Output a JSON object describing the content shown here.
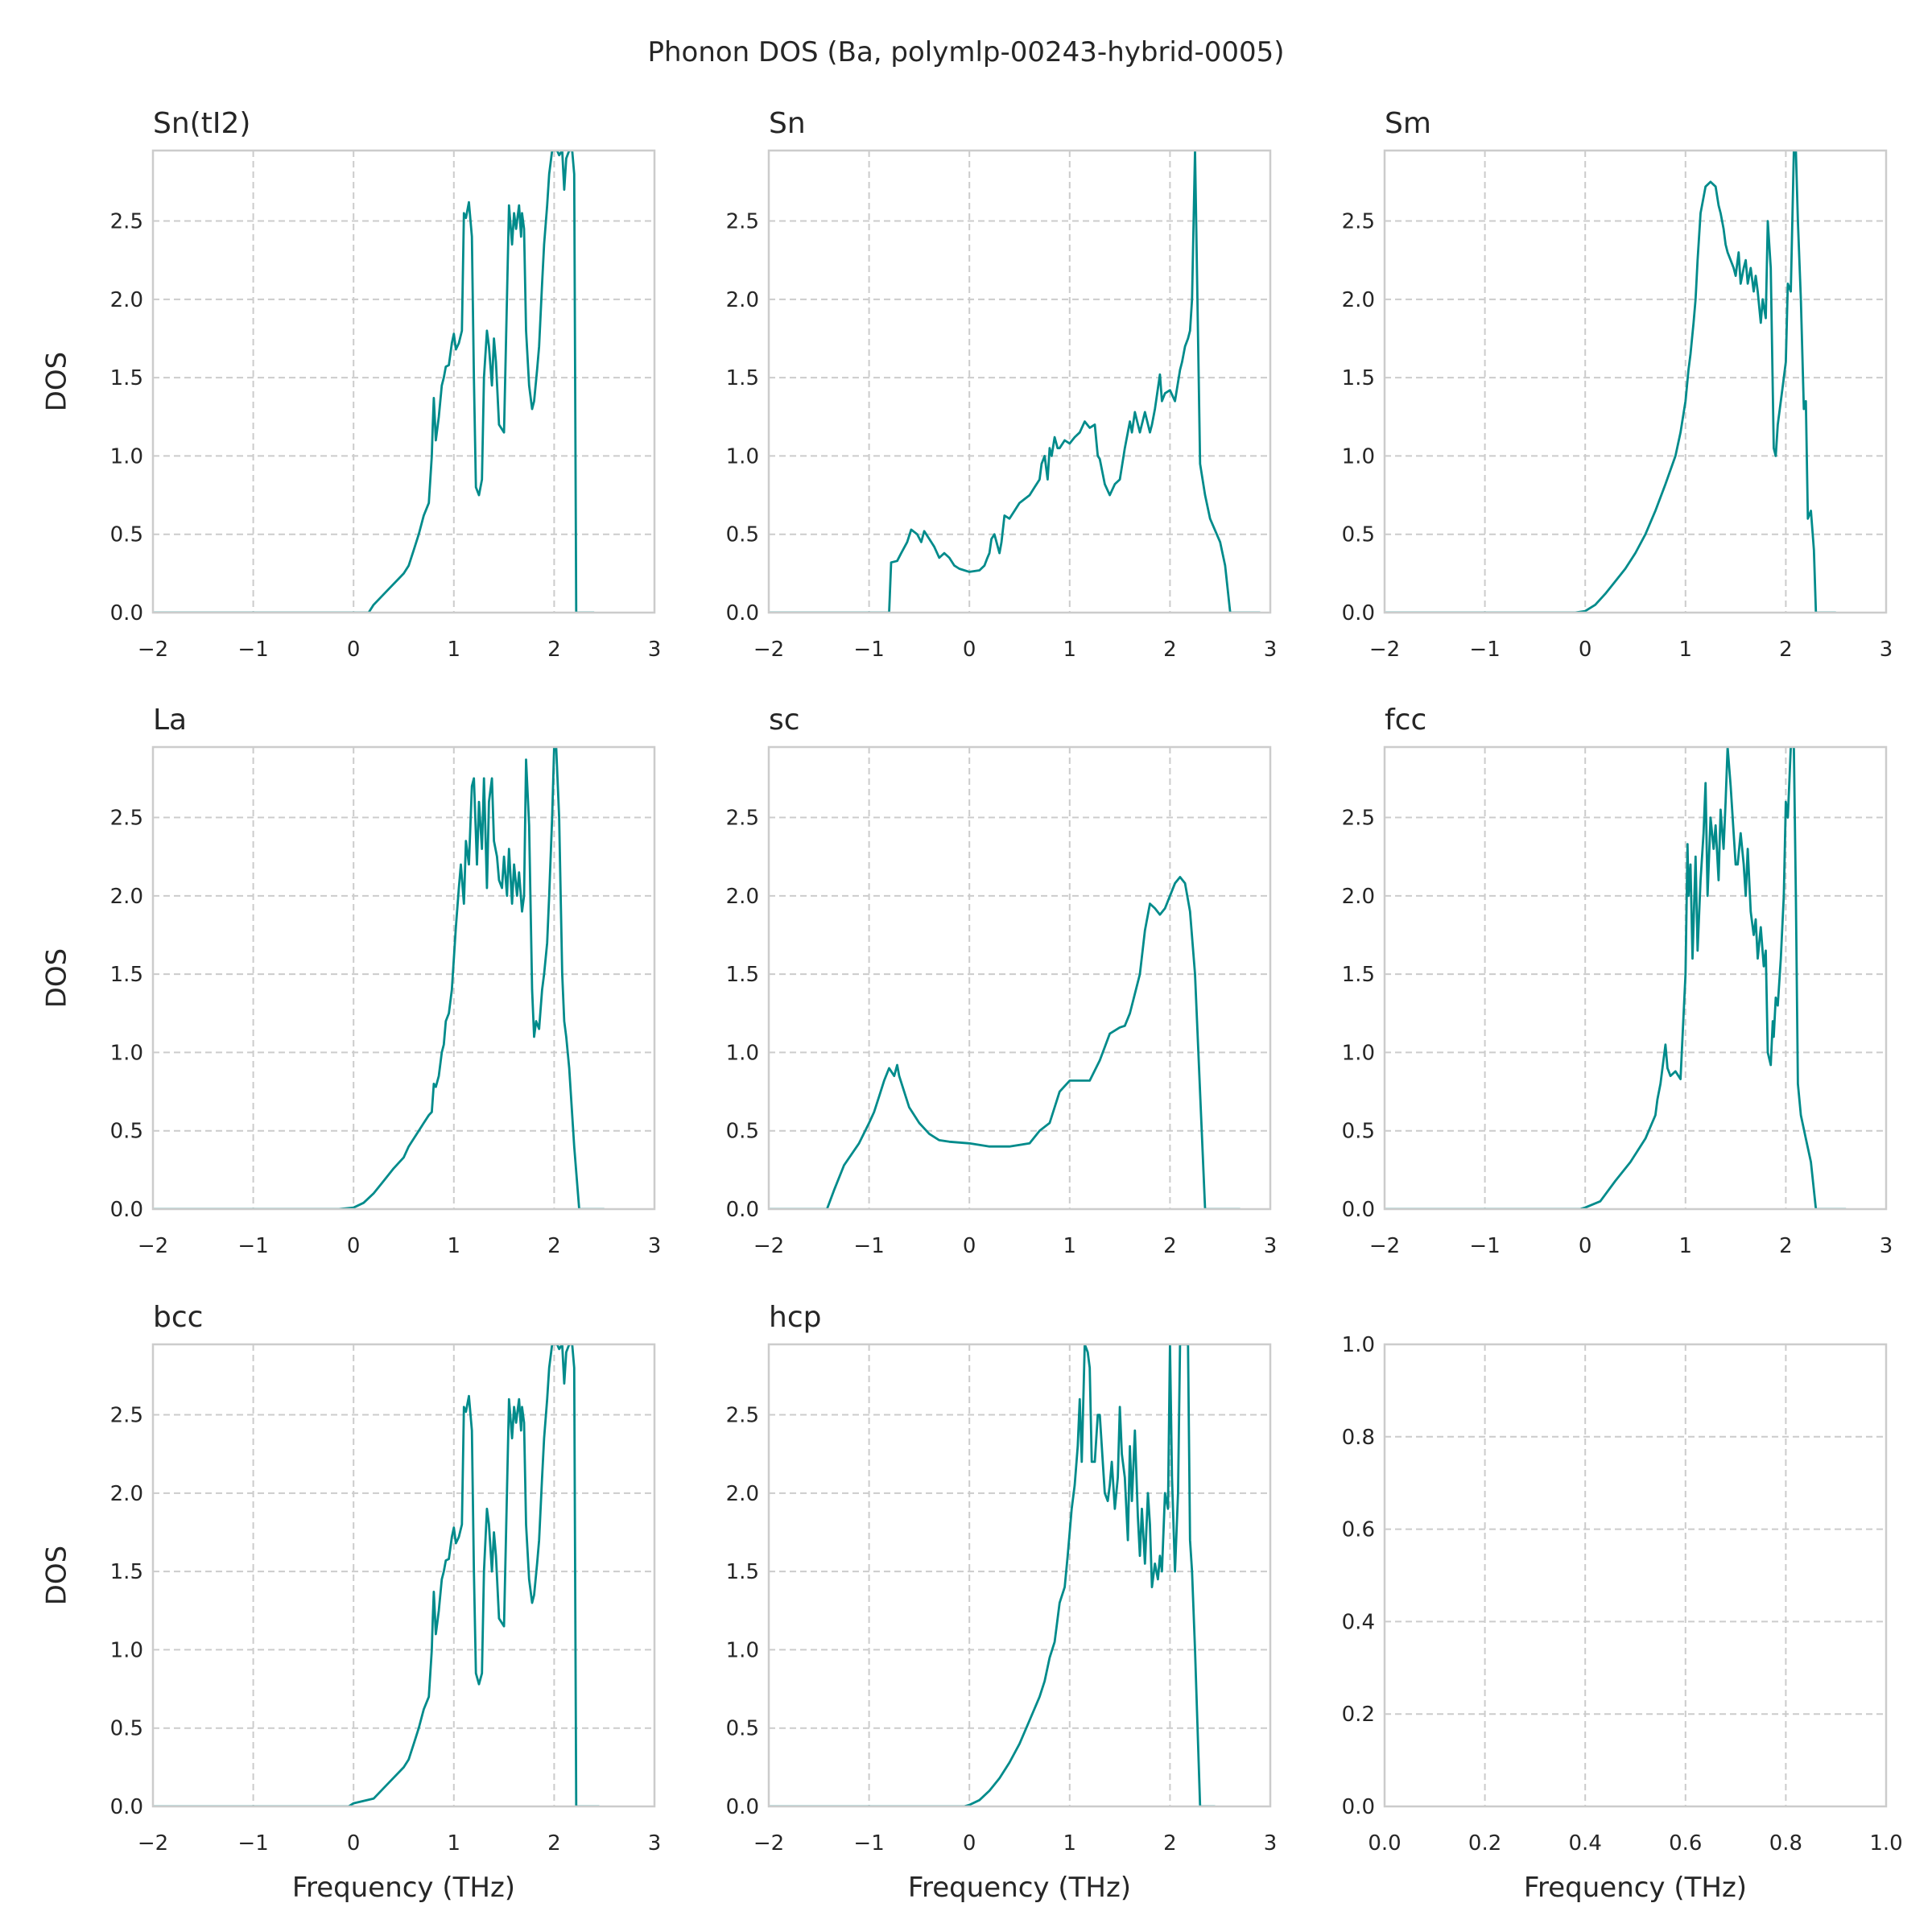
{
  "figure": {
    "title": "Phonon DOS (Ba, polymlp-00243-hybrid-0005)",
    "series_color": "#008b8b",
    "grid_color": "#cccccc"
  },
  "chart_data": [
    {
      "type": "line",
      "title": "Sn(tI2)",
      "xlabel": "",
      "ylabel": "DOS",
      "xlim": [
        -2,
        3
      ],
      "ylim": [
        0,
        2.95
      ],
      "xticks": [
        "−2",
        "−1",
        "0",
        "1",
        "2",
        "3"
      ],
      "yticks": [
        "0.0",
        "0.5",
        "1.0",
        "1.5",
        "2.0",
        "2.5"
      ],
      "grid": true,
      "x": [
        -2.0,
        0.15,
        0.2,
        0.35,
        0.5,
        0.55,
        0.6,
        0.65,
        0.7,
        0.75,
        0.78,
        0.79,
        0.8,
        0.82,
        0.85,
        0.88,
        0.9,
        0.92,
        0.95,
        0.98,
        1.0,
        1.02,
        1.05,
        1.08,
        1.1,
        1.12,
        1.15,
        1.18,
        1.2,
        1.22,
        1.25,
        1.28,
        1.3,
        1.33,
        1.35,
        1.38,
        1.4,
        1.42,
        1.45,
        1.5,
        1.55,
        1.58,
        1.6,
        1.62,
        1.65,
        1.67,
        1.68,
        1.7,
        1.72,
        1.75,
        1.78,
        1.8,
        1.83,
        1.85,
        1.88,
        1.9,
        1.93,
        1.95,
        1.98,
        2.0,
        2.03,
        2.05,
        2.08,
        2.1,
        2.12,
        2.15,
        2.18,
        2.2,
        2.22,
        2.25,
        2.4
      ],
      "y": [
        0.0,
        0.0,
        0.05,
        0.15,
        0.25,
        0.3,
        0.4,
        0.5,
        0.62,
        0.7,
        1.0,
        1.2,
        1.37,
        1.1,
        1.25,
        1.45,
        1.5,
        1.57,
        1.58,
        1.72,
        1.78,
        1.68,
        1.72,
        1.8,
        2.55,
        2.52,
        2.62,
        2.4,
        1.5,
        0.8,
        0.75,
        0.85,
        1.5,
        1.8,
        1.7,
        1.45,
        1.75,
        1.6,
        1.2,
        1.15,
        2.6,
        2.35,
        2.55,
        2.45,
        2.6,
        2.4,
        2.55,
        2.45,
        1.8,
        1.45,
        1.3,
        1.35,
        1.55,
        1.7,
        2.1,
        2.35,
        2.6,
        2.8,
        2.95,
        2.95,
        2.95,
        2.92,
        2.95,
        2.7,
        2.9,
        2.95,
        2.95,
        2.8,
        0.0,
        0.0,
        0.0
      ]
    },
    {
      "type": "line",
      "title": "Sn",
      "xlabel": "",
      "ylabel": "",
      "xlim": [
        -2,
        3
      ],
      "ylim": [
        0,
        2.95
      ],
      "xticks": [
        "−2",
        "−1",
        "0",
        "1",
        "2",
        "3"
      ],
      "yticks": [
        "0.0",
        "0.5",
        "1.0",
        "1.5",
        "2.0",
        "2.5"
      ],
      "grid": true,
      "x": [
        -2.0,
        -1.1,
        -0.8,
        -0.78,
        -0.72,
        -0.68,
        -0.62,
        -0.58,
        -0.52,
        -0.48,
        -0.45,
        -0.4,
        -0.35,
        -0.3,
        -0.25,
        -0.2,
        -0.15,
        -0.1,
        0.0,
        0.1,
        0.15,
        0.18,
        0.2,
        0.22,
        0.25,
        0.3,
        0.32,
        0.35,
        0.4,
        0.45,
        0.5,
        0.6,
        0.65,
        0.7,
        0.72,
        0.75,
        0.78,
        0.8,
        0.82,
        0.85,
        0.88,
        0.9,
        0.95,
        1.0,
        1.05,
        1.1,
        1.15,
        1.2,
        1.25,
        1.28,
        1.3,
        1.35,
        1.4,
        1.45,
        1.5,
        1.55,
        1.6,
        1.62,
        1.65,
        1.7,
        1.75,
        1.8,
        1.82,
        1.85,
        1.9,
        1.92,
        1.95,
        2.0,
        2.05,
        2.1,
        2.12,
        2.15,
        2.18,
        2.2,
        2.22,
        2.25,
        2.3,
        2.35,
        2.4,
        2.5,
        2.55,
        2.6,
        2.9
      ],
      "y": [
        0.0,
        0.0,
        0.0,
        0.32,
        0.33,
        0.38,
        0.45,
        0.53,
        0.5,
        0.45,
        0.52,
        0.47,
        0.42,
        0.35,
        0.38,
        0.35,
        0.3,
        0.28,
        0.26,
        0.27,
        0.3,
        0.35,
        0.38,
        0.47,
        0.5,
        0.38,
        0.45,
        0.62,
        0.6,
        0.65,
        0.7,
        0.75,
        0.8,
        0.85,
        0.95,
        1.0,
        0.85,
        1.05,
        1.0,
        1.12,
        1.05,
        1.05,
        1.1,
        1.08,
        1.12,
        1.15,
        1.22,
        1.18,
        1.2,
        1.0,
        0.98,
        0.82,
        0.75,
        0.82,
        0.85,
        1.05,
        1.22,
        1.15,
        1.28,
        1.15,
        1.28,
        1.15,
        1.2,
        1.3,
        1.52,
        1.35,
        1.4,
        1.42,
        1.35,
        1.55,
        1.6,
        1.7,
        1.75,
        1.8,
        2.0,
        2.95,
        0.95,
        0.75,
        0.6,
        0.45,
        0.3,
        0.0,
        0.0
      ]
    },
    {
      "type": "line",
      "title": "Sm",
      "xlabel": "",
      "ylabel": "",
      "xlim": [
        -2,
        3
      ],
      "ylim": [
        0,
        2.95
      ],
      "xticks": [
        "−2",
        "−1",
        "0",
        "1",
        "2",
        "3"
      ],
      "yticks": [
        "0.0",
        "0.5",
        "1.0",
        "1.5",
        "2.0",
        "2.5"
      ],
      "grid": true,
      "x": [
        -2.0,
        -0.1,
        0.0,
        0.1,
        0.2,
        0.3,
        0.4,
        0.5,
        0.6,
        0.7,
        0.8,
        0.9,
        0.95,
        1.0,
        1.03,
        1.05,
        1.08,
        1.1,
        1.12,
        1.15,
        1.2,
        1.25,
        1.3,
        1.33,
        1.35,
        1.38,
        1.4,
        1.42,
        1.45,
        1.48,
        1.5,
        1.53,
        1.55,
        1.58,
        1.6,
        1.62,
        1.65,
        1.68,
        1.7,
        1.72,
        1.75,
        1.77,
        1.8,
        1.82,
        1.85,
        1.88,
        1.9,
        1.92,
        1.95,
        1.97,
        2.0,
        2.02,
        2.05,
        2.08,
        2.1,
        2.12,
        2.15,
        2.18,
        2.2,
        2.22,
        2.25,
        2.28,
        2.3,
        2.5
      ],
      "y": [
        0.0,
        0.0,
        0.01,
        0.05,
        0.12,
        0.2,
        0.28,
        0.38,
        0.5,
        0.65,
        0.82,
        1.0,
        1.15,
        1.35,
        1.55,
        1.65,
        1.85,
        2.0,
        2.25,
        2.55,
        2.72,
        2.75,
        2.72,
        2.6,
        2.55,
        2.45,
        2.35,
        2.3,
        2.25,
        2.2,
        2.15,
        2.3,
        2.1,
        2.2,
        2.25,
        2.1,
        2.2,
        2.05,
        2.15,
        2.05,
        1.85,
        2.0,
        1.88,
        2.5,
        2.2,
        1.05,
        1.0,
        1.2,
        1.35,
        1.45,
        1.6,
        2.1,
        2.05,
        2.95,
        2.95,
        2.5,
        2.0,
        1.3,
        1.35,
        0.6,
        0.65,
        0.4,
        0.0,
        0.0
      ]
    },
    {
      "type": "line",
      "title": "La",
      "xlabel": "",
      "ylabel": "DOS",
      "xlim": [
        -2,
        3
      ],
      "ylim": [
        0,
        2.95
      ],
      "xticks": [
        "−2",
        "−1",
        "0",
        "1",
        "2",
        "3"
      ],
      "yticks": [
        "0.0",
        "0.5",
        "1.0",
        "1.5",
        "2.0",
        "2.5"
      ],
      "grid": true,
      "x": [
        -2.0,
        -0.15,
        0.0,
        0.1,
        0.2,
        0.3,
        0.4,
        0.5,
        0.55,
        0.6,
        0.65,
        0.7,
        0.75,
        0.78,
        0.8,
        0.82,
        0.85,
        0.88,
        0.9,
        0.92,
        0.95,
        0.98,
        1.0,
        1.02,
        1.05,
        1.07,
        1.1,
        1.12,
        1.15,
        1.18,
        1.2,
        1.23,
        1.25,
        1.28,
        1.3,
        1.33,
        1.35,
        1.38,
        1.4,
        1.43,
        1.45,
        1.48,
        1.5,
        1.53,
        1.55,
        1.58,
        1.6,
        1.63,
        1.65,
        1.68,
        1.7,
        1.72,
        1.75,
        1.78,
        1.8,
        1.82,
        1.85,
        1.88,
        1.9,
        1.93,
        1.95,
        1.98,
        2.0,
        2.02,
        2.05,
        2.08,
        2.1,
        2.12,
        2.15,
        2.2,
        2.25,
        2.3,
        2.5
      ],
      "y": [
        0.0,
        0.0,
        0.01,
        0.04,
        0.1,
        0.18,
        0.26,
        0.33,
        0.4,
        0.45,
        0.5,
        0.55,
        0.6,
        0.62,
        0.8,
        0.78,
        0.85,
        1.0,
        1.05,
        1.2,
        1.25,
        1.4,
        1.6,
        1.8,
        2.05,
        2.2,
        1.95,
        2.35,
        2.2,
        2.7,
        2.75,
        2.2,
        2.6,
        2.3,
        2.75,
        2.05,
        2.6,
        2.75,
        2.35,
        2.25,
        2.1,
        2.05,
        2.25,
        2.0,
        2.3,
        1.95,
        2.2,
        2.0,
        2.15,
        1.9,
        2.0,
        2.87,
        2.45,
        1.4,
        1.1,
        1.2,
        1.15,
        1.4,
        1.5,
        1.7,
        2.0,
        2.5,
        2.95,
        2.95,
        2.5,
        1.5,
        1.2,
        1.1,
        0.9,
        0.4,
        0.0,
        0.0,
        0.0
      ]
    },
    {
      "type": "line",
      "title": "sc",
      "xlabel": "",
      "ylabel": "",
      "xlim": [
        -2,
        3
      ],
      "ylim": [
        0,
        2.95
      ],
      "xticks": [
        "−2",
        "−1",
        "0",
        "1",
        "2",
        "3"
      ],
      "yticks": [
        "0.0",
        "0.5",
        "1.0",
        "1.5",
        "2.0",
        "2.5"
      ],
      "grid": true,
      "x": [
        -2.0,
        -1.8,
        -1.42,
        -1.35,
        -1.25,
        -1.1,
        -1.0,
        -0.95,
        -0.9,
        -0.85,
        -0.8,
        -0.75,
        -0.72,
        -0.7,
        -0.65,
        -0.6,
        -0.5,
        -0.4,
        -0.3,
        -0.2,
        0.0,
        0.2,
        0.4,
        0.6,
        0.7,
        0.8,
        0.9,
        1.0,
        1.1,
        1.2,
        1.3,
        1.4,
        1.5,
        1.55,
        1.6,
        1.7,
        1.75,
        1.8,
        1.85,
        1.9,
        1.95,
        2.0,
        2.05,
        2.1,
        2.15,
        2.2,
        2.25,
        2.35,
        2.7
      ],
      "y": [
        0.0,
        0.0,
        0.0,
        0.12,
        0.28,
        0.42,
        0.55,
        0.62,
        0.72,
        0.82,
        0.9,
        0.85,
        0.92,
        0.85,
        0.75,
        0.65,
        0.55,
        0.48,
        0.44,
        0.43,
        0.42,
        0.4,
        0.4,
        0.42,
        0.5,
        0.55,
        0.75,
        0.82,
        0.82,
        0.82,
        0.95,
        1.12,
        1.16,
        1.17,
        1.25,
        1.5,
        1.78,
        1.95,
        1.92,
        1.88,
        1.92,
        2.0,
        2.08,
        2.12,
        2.08,
        1.9,
        1.5,
        0.0,
        0.0
      ]
    },
    {
      "type": "line",
      "title": "fcc",
      "xlabel": "",
      "ylabel": "",
      "xlim": [
        -2,
        3
      ],
      "ylim": [
        0,
        2.95
      ],
      "xticks": [
        "−2",
        "−1",
        "0",
        "1",
        "2",
        "3"
      ],
      "yticks": [
        "0.0",
        "0.5",
        "1.0",
        "1.5",
        "2.0",
        "2.5"
      ],
      "grid": true,
      "x": [
        -2.0,
        -0.05,
        0.0,
        0.15,
        0.3,
        0.45,
        0.6,
        0.7,
        0.72,
        0.75,
        0.78,
        0.8,
        0.82,
        0.85,
        0.9,
        0.95,
        1.0,
        1.02,
        1.03,
        1.05,
        1.07,
        1.1,
        1.12,
        1.15,
        1.18,
        1.2,
        1.22,
        1.25,
        1.28,
        1.3,
        1.33,
        1.35,
        1.38,
        1.4,
        1.42,
        1.45,
        1.48,
        1.5,
        1.52,
        1.55,
        1.58,
        1.6,
        1.62,
        1.65,
        1.68,
        1.7,
        1.72,
        1.75,
        1.78,
        1.8,
        1.82,
        1.85,
        1.87,
        1.88,
        1.9,
        1.92,
        1.95,
        1.98,
        2.0,
        2.02,
        2.05,
        2.08,
        2.1,
        2.12,
        2.15,
        2.2,
        2.25,
        2.3,
        2.4,
        2.6
      ],
      "y": [
        0.0,
        0.0,
        0.01,
        0.05,
        0.18,
        0.3,
        0.45,
        0.6,
        0.7,
        0.8,
        0.95,
        1.05,
        0.9,
        0.85,
        0.88,
        0.83,
        1.5,
        2.33,
        2.0,
        2.2,
        1.6,
        2.25,
        1.65,
        2.1,
        2.4,
        2.72,
        2.0,
        2.5,
        2.3,
        2.45,
        2.1,
        2.55,
        2.3,
        2.6,
        2.95,
        2.7,
        2.4,
        2.2,
        2.2,
        2.4,
        2.2,
        2.0,
        2.3,
        1.9,
        1.75,
        1.85,
        1.6,
        1.8,
        1.55,
        1.65,
        1.0,
        0.92,
        1.2,
        1.1,
        1.35,
        1.3,
        1.6,
        2.0,
        2.6,
        2.5,
        2.95,
        2.95,
        2.0,
        0.8,
        0.6,
        0.45,
        0.3,
        0.0,
        0.0,
        0.0
      ]
    },
    {
      "type": "line",
      "title": "bcc",
      "xlabel": "Frequency (THz)",
      "ylabel": "DOS",
      "xlim": [
        -2,
        3
      ],
      "ylim": [
        0,
        2.95
      ],
      "xticks": [
        "−2",
        "−1",
        "0",
        "1",
        "2",
        "3"
      ],
      "yticks": [
        "0.0",
        "0.5",
        "1.0",
        "1.5",
        "2.0",
        "2.5"
      ],
      "grid": true,
      "x": [
        -2.0,
        -0.05,
        0.0,
        0.2,
        0.35,
        0.5,
        0.55,
        0.6,
        0.65,
        0.7,
        0.75,
        0.78,
        0.79,
        0.8,
        0.82,
        0.85,
        0.88,
        0.9,
        0.92,
        0.95,
        0.98,
        1.0,
        1.02,
        1.05,
        1.08,
        1.1,
        1.12,
        1.15,
        1.18,
        1.2,
        1.22,
        1.25,
        1.28,
        1.3,
        1.33,
        1.35,
        1.38,
        1.4,
        1.42,
        1.45,
        1.5,
        1.55,
        1.58,
        1.6,
        1.62,
        1.65,
        1.67,
        1.68,
        1.7,
        1.72,
        1.75,
        1.78,
        1.8,
        1.83,
        1.85,
        1.88,
        1.9,
        1.93,
        1.95,
        1.98,
        2.0,
        2.03,
        2.05,
        2.08,
        2.1,
        2.12,
        2.15,
        2.18,
        2.2,
        2.22,
        2.25,
        2.45
      ],
      "y": [
        0.0,
        0.0,
        0.02,
        0.05,
        0.15,
        0.25,
        0.3,
        0.4,
        0.5,
        0.62,
        0.7,
        1.0,
        1.2,
        1.37,
        1.1,
        1.25,
        1.45,
        1.5,
        1.57,
        1.58,
        1.72,
        1.78,
        1.68,
        1.72,
        1.8,
        2.55,
        2.52,
        2.62,
        2.4,
        1.5,
        0.85,
        0.78,
        0.85,
        1.5,
        1.9,
        1.8,
        1.5,
        1.75,
        1.6,
        1.2,
        1.15,
        2.6,
        2.35,
        2.55,
        2.45,
        2.6,
        2.4,
        2.55,
        2.45,
        1.8,
        1.45,
        1.3,
        1.35,
        1.55,
        1.7,
        2.1,
        2.35,
        2.6,
        2.8,
        2.95,
        2.95,
        2.95,
        2.92,
        2.95,
        2.7,
        2.9,
        2.95,
        2.95,
        2.8,
        0.0,
        0.0,
        0.0
      ]
    },
    {
      "type": "line",
      "title": "hcp",
      "xlabel": "Frequency (THz)",
      "ylabel": "",
      "xlim": [
        -2,
        3
      ],
      "ylim": [
        0,
        2.95
      ],
      "xticks": [
        "−2",
        "−1",
        "0",
        "1",
        "2",
        "3"
      ],
      "yticks": [
        "0.0",
        "0.5",
        "1.0",
        "1.5",
        "2.0",
        "2.5"
      ],
      "grid": true,
      "x": [
        -2.0,
        -0.05,
        0.0,
        0.1,
        0.2,
        0.3,
        0.4,
        0.5,
        0.6,
        0.7,
        0.75,
        0.8,
        0.85,
        0.9,
        0.95,
        0.98,
        1.0,
        1.02,
        1.05,
        1.08,
        1.1,
        1.12,
        1.15,
        1.18,
        1.2,
        1.22,
        1.25,
        1.28,
        1.3,
        1.33,
        1.35,
        1.38,
        1.4,
        1.42,
        1.45,
        1.48,
        1.5,
        1.52,
        1.55,
        1.58,
        1.6,
        1.62,
        1.65,
        1.68,
        1.7,
        1.72,
        1.75,
        1.78,
        1.8,
        1.82,
        1.85,
        1.88,
        1.9,
        1.92,
        1.95,
        1.98,
        2.0,
        2.02,
        2.05,
        2.08,
        2.1,
        2.12,
        2.15,
        2.18,
        2.2,
        2.22,
        2.25,
        2.3,
        2.45
      ],
      "y": [
        0.0,
        0.0,
        0.01,
        0.04,
        0.1,
        0.18,
        0.28,
        0.4,
        0.55,
        0.7,
        0.8,
        0.95,
        1.05,
        1.3,
        1.4,
        1.6,
        1.75,
        1.9,
        2.05,
        2.3,
        2.6,
        2.2,
        2.95,
        2.9,
        2.8,
        2.2,
        2.2,
        2.5,
        2.5,
        2.2,
        2.0,
        1.95,
        2.05,
        2.2,
        1.9,
        2.1,
        2.55,
        2.25,
        2.1,
        1.7,
        2.3,
        1.95,
        2.4,
        1.85,
        1.6,
        1.9,
        1.55,
        2.0,
        1.8,
        1.4,
        1.55,
        1.45,
        1.6,
        1.5,
        2.0,
        1.9,
        2.95,
        2.1,
        1.5,
        2.0,
        2.95,
        2.95,
        2.95,
        2.95,
        1.7,
        1.5,
        1.0,
        0.0,
        0.0
      ]
    },
    {
      "type": "line",
      "title": "",
      "xlabel": "Frequency (THz)",
      "ylabel": "",
      "xlim": [
        0,
        1
      ],
      "ylim": [
        0,
        1
      ],
      "xticks": [
        "0.0",
        "0.2",
        "0.4",
        "0.6",
        "0.8",
        "1.0"
      ],
      "yticks": [
        "0.0",
        "0.2",
        "0.4",
        "0.6",
        "0.8",
        "1.0"
      ],
      "grid": true,
      "x": [],
      "y": []
    }
  ]
}
